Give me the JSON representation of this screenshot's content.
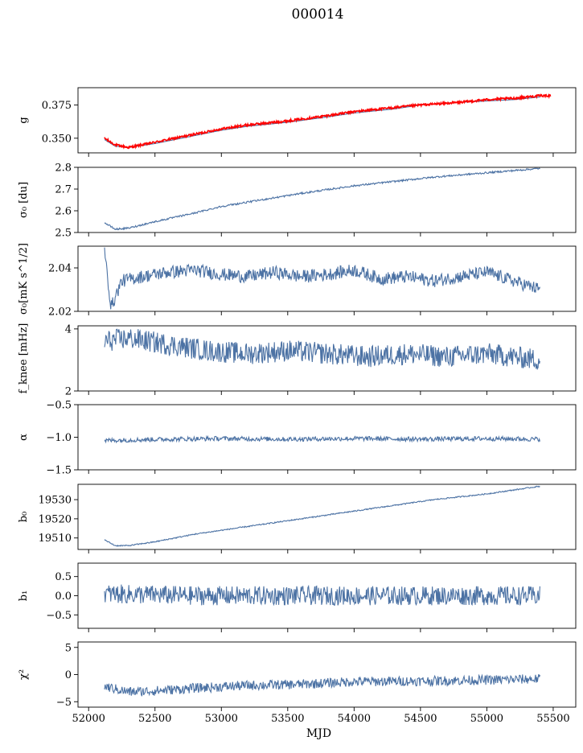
{
  "figure_title": "000014",
  "colors": {
    "series": "#4c72a4",
    "overlay": "#ff0000",
    "axes": "#000000"
  },
  "chart_data": [
    {
      "type": "line",
      "ylabel": "g",
      "ylim": [
        0.339,
        0.388
      ],
      "yticks": [
        0.35,
        0.375
      ],
      "ytick_labels": [
        "0.350",
        "0.375"
      ],
      "series": [
        {
          "style": "line",
          "color": "#4c72a4",
          "x": [
            52120,
            52200,
            52300,
            52500,
            52800,
            53000,
            53200,
            53500,
            53800,
            54000,
            54300,
            54500,
            54800,
            55000,
            55200,
            55400
          ],
          "y": [
            0.349,
            0.344,
            0.343,
            0.346,
            0.352,
            0.356,
            0.359,
            0.362,
            0.366,
            0.369,
            0.372,
            0.375,
            0.377,
            0.378,
            0.379,
            0.381
          ]
        },
        {
          "style": "overlay",
          "color": "#ff0000",
          "x": [
            52120,
            52200,
            52300,
            52500,
            52800,
            53000,
            53200,
            53500,
            53800,
            54000,
            54300,
            54500,
            54800,
            55000,
            55200,
            55400,
            55480
          ],
          "y": [
            0.35,
            0.345,
            0.343,
            0.347,
            0.353,
            0.357,
            0.36,
            0.363,
            0.367,
            0.37,
            0.373,
            0.375,
            0.377,
            0.379,
            0.38,
            0.382,
            0.382
          ],
          "noise": 0.0008
        }
      ]
    },
    {
      "type": "line",
      "ylabel": "σ₀ [du]",
      "ylim": [
        2.5,
        2.8
      ],
      "yticks": [
        2.5,
        2.6,
        2.7,
        2.8
      ],
      "ytick_labels": [
        "2.5",
        "2.6",
        "2.7",
        "2.8"
      ],
      "series": [
        {
          "style": "line",
          "color": "#4c72a4",
          "x": [
            52120,
            52200,
            52300,
            52500,
            52800,
            53000,
            53300,
            53600,
            54000,
            54300,
            54600,
            55000,
            55400
          ],
          "y": [
            2.545,
            2.515,
            2.52,
            2.55,
            2.59,
            2.62,
            2.65,
            2.68,
            2.715,
            2.735,
            2.755,
            2.775,
            2.795
          ],
          "noise": 0.004
        }
      ]
    },
    {
      "type": "line",
      "ylabel": "σ₀[mK s^1/2]",
      "ylim": [
        2.02,
        2.05
      ],
      "yticks": [
        2.02,
        2.04
      ],
      "ytick_labels": [
        "2.02",
        "2.04"
      ],
      "series": [
        {
          "style": "line",
          "color": "#4c72a4",
          "x": [
            52120,
            52170,
            52250,
            52400,
            52600,
            52800,
            53000,
            53200,
            53400,
            53600,
            53800,
            54000,
            54200,
            54400,
            54600,
            54800,
            55000,
            55200,
            55400
          ],
          "y": [
            2.047,
            2.022,
            2.034,
            2.036,
            2.038,
            2.039,
            2.037,
            2.036,
            2.038,
            2.036,
            2.037,
            2.039,
            2.035,
            2.036,
            2.034,
            2.036,
            2.038,
            2.034,
            2.03
          ],
          "noise": 0.003
        }
      ]
    },
    {
      "type": "line",
      "ylabel": "f_knee [mHz]",
      "ylim": [
        2,
        4.1
      ],
      "yticks": [
        2,
        4
      ],
      "ytick_labels": [
        "2",
        "4"
      ],
      "series": [
        {
          "style": "line",
          "color": "#4c72a4",
          "x": [
            52120,
            52300,
            52600,
            52900,
            53200,
            53500,
            53800,
            54100,
            54400,
            54700,
            55000,
            55400
          ],
          "y": [
            3.6,
            3.7,
            3.5,
            3.3,
            3.2,
            3.3,
            3.2,
            3.1,
            3.2,
            3.1,
            3.2,
            3.0
          ],
          "noise": 0.35
        }
      ]
    },
    {
      "type": "line",
      "ylabel": "α",
      "ylim": [
        -1.5,
        -0.5
      ],
      "yticks": [
        -1.5,
        -1.0,
        -0.5
      ],
      "ytick_labels": [
        "−1.5",
        "−1.0",
        "−0.5"
      ],
      "series": [
        {
          "style": "line",
          "color": "#4c72a4",
          "x": [
            52120,
            52600,
            53000,
            53500,
            54000,
            54500,
            55000,
            55400
          ],
          "y": [
            -1.05,
            -1.03,
            -1.02,
            -1.03,
            -1.02,
            -1.03,
            -1.02,
            -1.03
          ],
          "noise": 0.035
        }
      ]
    },
    {
      "type": "line",
      "ylabel": "b₀",
      "ylim": [
        19504,
        19538
      ],
      "yticks": [
        19510,
        19520,
        19530
      ],
      "ytick_labels": [
        "19510",
        "19520",
        "19530"
      ],
      "series": [
        {
          "style": "line",
          "color": "#4c72a4",
          "x": [
            52120,
            52200,
            52300,
            52500,
            52800,
            53000,
            53300,
            53600,
            54000,
            54300,
            54600,
            55000,
            55400
          ],
          "y": [
            19509,
            19506,
            19506,
            19508,
            19512,
            19514,
            19517,
            19520,
            19524,
            19527,
            19530,
            19533,
            19537
          ],
          "noise": 0.3
        }
      ]
    },
    {
      "type": "line",
      "ylabel": "b₁",
      "ylim": [
        -0.85,
        0.85
      ],
      "yticks": [
        -0.5,
        0.0,
        0.5
      ],
      "ytick_labels": [
        "−0.5",
        "0.0",
        "0.5"
      ],
      "series": [
        {
          "style": "line",
          "color": "#4c72a4",
          "x": [
            52120,
            52800,
            53500,
            54200,
            54900,
            55400
          ],
          "y": [
            0.05,
            0.0,
            0.0,
            0.0,
            0.0,
            0.0
          ],
          "noise": 0.25
        }
      ]
    },
    {
      "type": "line",
      "ylabel": "χ²",
      "ylim": [
        -6,
        6
      ],
      "yticks": [
        -5,
        0,
        5
      ],
      "ytick_labels": [
        "−5",
        "0",
        "5"
      ],
      "xlabel": "MJD",
      "xticks": [
        52000,
        52500,
        53000,
        53500,
        54000,
        54500,
        55000,
        55500
      ],
      "xtick_labels": [
        "52000",
        "52500",
        "53000",
        "53500",
        "54000",
        "54500",
        "55000",
        "55500"
      ],
      "series": [
        {
          "style": "line",
          "color": "#4c72a4",
          "x": [
            52120,
            52300,
            52500,
            52800,
            53200,
            53600,
            54000,
            54500,
            55000,
            55400
          ],
          "y": [
            -2.2,
            -3.2,
            -3.0,
            -2.5,
            -2.0,
            -1.8,
            -1.3,
            -1.2,
            -1.0,
            -0.8
          ],
          "noise": 0.9
        }
      ]
    }
  ],
  "shared_xlim": [
    51920,
    55670
  ]
}
